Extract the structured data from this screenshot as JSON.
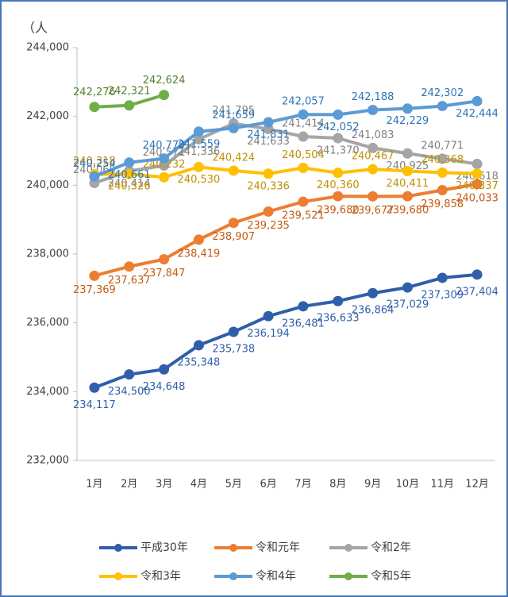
{
  "chart_data": {
    "type": "line",
    "y_label": "（人",
    "categories": [
      "1月",
      "2月",
      "3月",
      "4月",
      "5月",
      "6月",
      "7月",
      "8月",
      "9月",
      "10月",
      "11月",
      "12月"
    ],
    "ylim": [
      232000,
      244000
    ],
    "yticks": [
      {
        "value": 232000,
        "label": "232,000"
      },
      {
        "value": 234000,
        "label": "234,000"
      },
      {
        "value": 236000,
        "label": "236,000"
      },
      {
        "value": 238000,
        "label": "238,000"
      },
      {
        "value": 240000,
        "label": "240,000"
      },
      {
        "value": 242000,
        "label": "242,000"
      },
      {
        "value": 244000,
        "label": "244,000"
      }
    ],
    "legend": "bottom",
    "series": [
      {
        "name": "平成30年",
        "color": "#2f5faa",
        "values": [
          234117,
          234500,
          234648,
          235348,
          235738,
          236194,
          236481,
          236633,
          236864,
          237029,
          237309,
          237404
        ],
        "value_labels": [
          "234,117",
          "234,500",
          "234,648",
          "235,348",
          "235,738",
          "236,194",
          "236,481",
          "236,633",
          "236,864",
          "237,029",
          "237,309",
          "237,404"
        ]
      },
      {
        "name": "令和元年",
        "color": "#ed7d31",
        "values": [
          237369,
          237637,
          237847,
          238419,
          238907,
          239235,
          239521,
          239680,
          239677,
          239680,
          239858,
          240033
        ],
        "value_labels": [
          "237,369",
          "237,637",
          "237,847",
          "238,419",
          "238,907",
          "239,235",
          "239,521",
          "239,680",
          "239,677",
          "239,680",
          "239,858",
          "240,033"
        ]
      },
      {
        "name": "令和2年",
        "color": "#a5a5a5",
        "values": [
          240065,
          240414,
          240571,
          241336,
          241795,
          241633,
          241414,
          241370,
          241083,
          240925,
          240771,
          240618
        ],
        "value_labels": [
          "240,065",
          "240,414",
          "240,571",
          "241,336",
          "241,795",
          "241,633",
          "241,414",
          "241,370",
          "241,083",
          "240,925",
          "240,771",
          "240,618"
        ]
      },
      {
        "name": "令和3年",
        "color": "#ffc000",
        "values": [
          240318,
          240326,
          240232,
          240530,
          240424,
          240336,
          240504,
          240360,
          240467,
          240411,
          240368,
          240337
        ],
        "value_labels": [
          "240,318",
          "240,326",
          "240,232",
          "240,530",
          "240,424",
          "240,336",
          "240,504",
          "240,360",
          "240,467",
          "240,411",
          "240,368",
          "240,337"
        ]
      },
      {
        "name": "令和4年",
        "color": "#5b9bd5",
        "values": [
          240254,
          240661,
          240779,
          241559,
          241659,
          241831,
          242057,
          242052,
          242188,
          242229,
          242302,
          242444
        ],
        "value_labels": [
          "240,254",
          "240,661",
          "240,779",
          "241,559",
          "241,659",
          "241,831",
          "242,057",
          "242,052",
          "242,188",
          "242,229",
          "242,302",
          "242,444"
        ]
      },
      {
        "name": "令和5年",
        "color": "#70ad47",
        "values": [
          242276,
          242321,
          242624,
          null,
          null,
          null,
          null,
          null,
          null,
          null,
          null,
          null
        ],
        "value_labels": [
          "242,276",
          "242,321",
          "242,624",
          null,
          null,
          null,
          null,
          null,
          null,
          null,
          null,
          null
        ]
      }
    ]
  }
}
